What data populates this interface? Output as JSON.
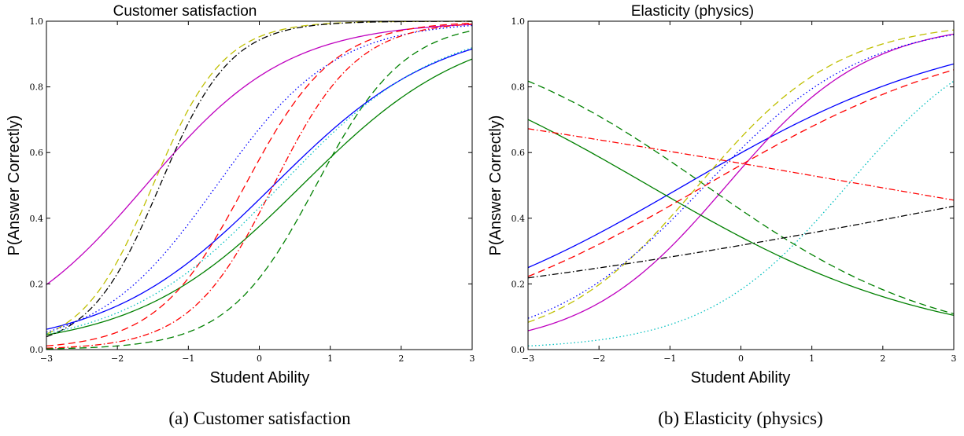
{
  "colors": {
    "blue": "#0000ff",
    "green": "#008000",
    "red": "#ff0000",
    "cyan": "#00bfbf",
    "magenta": "#bf00bf",
    "yellow": "#bfbf00",
    "black": "#000000"
  },
  "chart_data": [
    {
      "type": "line",
      "title": "Customer satisfaction",
      "caption": "(a) Customer satisfaction",
      "xlabel": "Student Ability",
      "ylabel": "P(Answer Correctly)",
      "xlim": [
        -3,
        3
      ],
      "ylim": [
        0,
        1
      ],
      "xticks": [
        "−3",
        "−2",
        "−1",
        "0",
        "1",
        "2",
        "3"
      ],
      "xtick_values": [
        -3,
        -2,
        -1,
        0,
        1,
        2,
        3
      ],
      "yticks": [
        "0.0",
        "0.2",
        "0.4",
        "0.6",
        "0.8",
        "1.0"
      ],
      "ytick_values": [
        0,
        0.2,
        0.4,
        0.6,
        0.8,
        1.0
      ],
      "grid": false,
      "series": [
        {
          "color": "magenta",
          "style": "solid",
          "a": 1.0,
          "b": -1.6
        },
        {
          "color": "blue",
          "style": "solid",
          "a": 0.85,
          "b": 0.2
        },
        {
          "color": "green",
          "style": "solid",
          "a": 0.85,
          "b": 0.6
        },
        {
          "color": "yellow",
          "style": "dashed",
          "a": 2.0,
          "b": -1.5
        },
        {
          "color": "black",
          "style": "dashdot",
          "a": 2.0,
          "b": -1.4
        },
        {
          "color": "blue",
          "style": "dotted",
          "a": 1.2,
          "b": -0.6
        },
        {
          "color": "red",
          "style": "dashed",
          "a": 1.6,
          "b": -0.2
        },
        {
          "color": "red",
          "style": "dashdot",
          "a": 1.7,
          "b": 0.2
        },
        {
          "color": "green",
          "style": "dashed",
          "a": 1.6,
          "b": 0.8
        },
        {
          "color": "cyan",
          "style": "dotted",
          "a": 0.9,
          "b": 0.3
        }
      ]
    },
    {
      "type": "line",
      "title": "Elasticity (physics)",
      "caption": "(b) Elasticity (physics)",
      "xlabel": "Student Ability",
      "ylabel": "P(Answer Correctly)",
      "xlim": [
        -3,
        3
      ],
      "ylim": [
        0,
        1
      ],
      "xticks": [
        "−3",
        "−2",
        "−1",
        "0",
        "1",
        "2",
        "3"
      ],
      "xtick_values": [
        -3,
        -2,
        -1,
        0,
        1,
        2,
        3
      ],
      "yticks": [
        "0.0",
        "0.2",
        "0.4",
        "0.6",
        "0.8",
        "1.0"
      ],
      "ytick_values": [
        0,
        0.2,
        0.4,
        0.6,
        0.8,
        1.0
      ],
      "grid": false,
      "series": [
        {
          "color": "blue",
          "style": "solid",
          "a": 0.5,
          "b": -0.8
        },
        {
          "color": "magenta",
          "style": "solid",
          "a": 1.0,
          "b": -0.2
        },
        {
          "color": "green",
          "style": "solid",
          "a": -0.5,
          "b": -1.3
        },
        {
          "color": "green",
          "style": "dashed",
          "a": -0.6,
          "b": -0.5
        },
        {
          "color": "yellow",
          "style": "dashed",
          "a": 1.0,
          "b": -0.6
        },
        {
          "color": "blue",
          "style": "dotted",
          "a": 0.9,
          "b": -0.5
        },
        {
          "color": "red",
          "style": "dashed",
          "a": 0.5,
          "b": -0.5
        },
        {
          "color": "red",
          "style": "dashdot",
          "a": -0.15,
          "b": 1.8
        },
        {
          "color": "black",
          "style": "dashdot",
          "a": 0.17,
          "b": 4.5
        },
        {
          "color": "cyan",
          "style": "dotted",
          "a": 1.0,
          "b": 1.5
        }
      ]
    }
  ]
}
